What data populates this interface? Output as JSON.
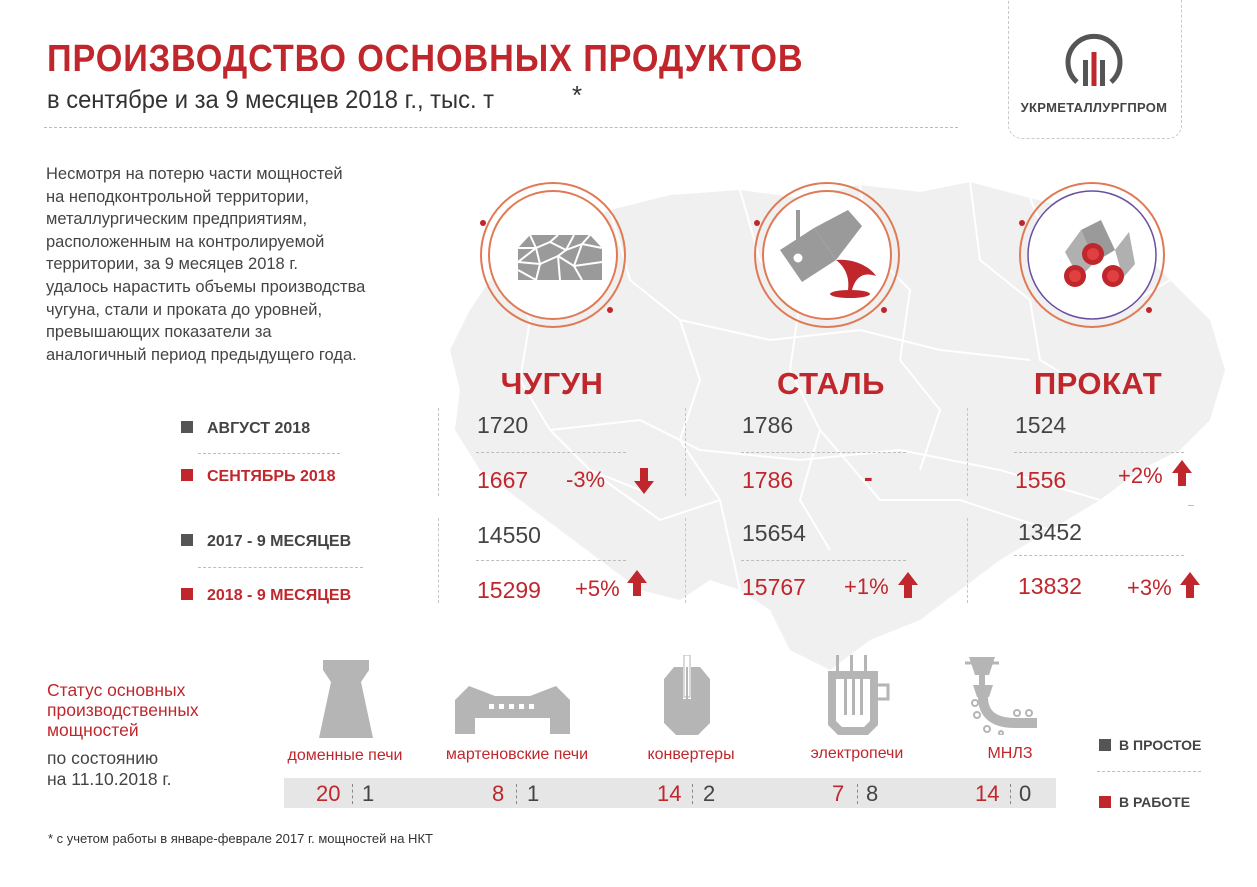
{
  "header": {
    "title": "ПРОИЗВОДСТВО ОСНОВНЫХ ПРОДУКТОВ",
    "subtitle": "в сентябре и за 9 месяцев 2018 г., тыс. т",
    "asterisk": "*"
  },
  "logo": {
    "text": "УКРМЕТАЛЛУРГПРОМ",
    "icon": "ukrmetallurgprom-logo-icon"
  },
  "intro": "Несмотря  на потерю части мощностей\nна неподконтрольной территории,\nметаллургическим предприятиям,\nрасположенным на контролируемой\nтерритории, за 9 месяцев 2018 г.\nудалось нарастить объемы производства\nчугуна, стали и проката до уровней,\nпревышающих показатели за\nаналогичный период предыдущего года.",
  "colors": {
    "accent": "#c0272d",
    "ring": "#e07a55",
    "gray": "#555555",
    "map": "#f0f0f0"
  },
  "legend": {
    "aug_2018": "АВГУСТ 2018",
    "sep_2018": "СЕНТЯБРЬ 2018",
    "m9_2017": "2017 - 9 МЕСЯЦЕВ",
    "m9_2018": "2018 - 9 МЕСЯЦЕВ"
  },
  "products": [
    {
      "name": "ЧУГУН",
      "icon": "pig-iron-icon",
      "aug": "1720",
      "sep": "1667",
      "month_change": "-3%",
      "month_trend": "down",
      "m9_2017": "14550",
      "m9_2018": "15299",
      "m9_change": "+5%",
      "m9_trend": "up"
    },
    {
      "name": "СТАЛЬ",
      "icon": "steel-ladle-icon",
      "aug": "1786",
      "sep": "1786",
      "month_change": "-",
      "month_trend": "flat",
      "m9_2017": "15654",
      "m9_2018": "15767",
      "m9_change": "+1%",
      "m9_trend": "up"
    },
    {
      "name": "ПРОКАТ",
      "icon": "rolled-pipes-icon",
      "aug": "1524",
      "sep": "1556",
      "month_change": "+2%",
      "month_trend": "up",
      "m9_2017": "13452",
      "m9_2018": "13832",
      "m9_change": "+3%",
      "m9_trend": "up"
    }
  ],
  "status": {
    "title": "Статус основных\nпроизводственных\nмощностей",
    "date": "по состоянию\nна 11.10.2018 г.",
    "idle_label": "В ПРОСТОЕ",
    "working_label": "В РАБОТЕ",
    "facilities": [
      {
        "name": "доменные печи",
        "icon": "blast-furnace-icon",
        "working": "20",
        "idle": "1"
      },
      {
        "name": "мартеновские печи",
        "icon": "open-hearth-furnace-icon",
        "working": "8",
        "idle": "1"
      },
      {
        "name": "конвертеры",
        "icon": "converter-icon",
        "working": "14",
        "idle": "2"
      },
      {
        "name": "электропечи",
        "icon": "electric-furnace-icon",
        "working": "7",
        "idle": "8"
      },
      {
        "name": "МНЛЗ",
        "icon": "continuous-casting-icon",
        "working": "14",
        "idle": "0"
      }
    ]
  },
  "footnote": "* с учетом работы в январе-феврале 2017 г. мощностей на НКТ",
  "chart_data": {
    "type": "table",
    "title": "ПРОИЗВОДСТВО ОСНОВНЫХ ПРОДУКТОВ",
    "subtitle": "в сентябре и за 9 месяцев 2018 г., тыс. т",
    "categories": [
      "ЧУГУН",
      "СТАЛЬ",
      "ПРОКАТ"
    ],
    "series": [
      {
        "name": "АВГУСТ 2018",
        "values": [
          1720,
          1786,
          1524
        ]
      },
      {
        "name": "СЕНТЯБРЬ 2018",
        "values": [
          1667,
          1786,
          1556
        ]
      },
      {
        "name": "2017 - 9 МЕСЯЦЕВ",
        "values": [
          14550,
          15654,
          13452
        ]
      },
      {
        "name": "2018 - 9 МЕСЯЦЕВ",
        "values": [
          15299,
          15767,
          13832
        ]
      }
    ],
    "month_changes": [
      "-3%",
      "-",
      "+2%"
    ],
    "nine_month_changes": [
      "+5%",
      "+1%",
      "+3%"
    ]
  }
}
